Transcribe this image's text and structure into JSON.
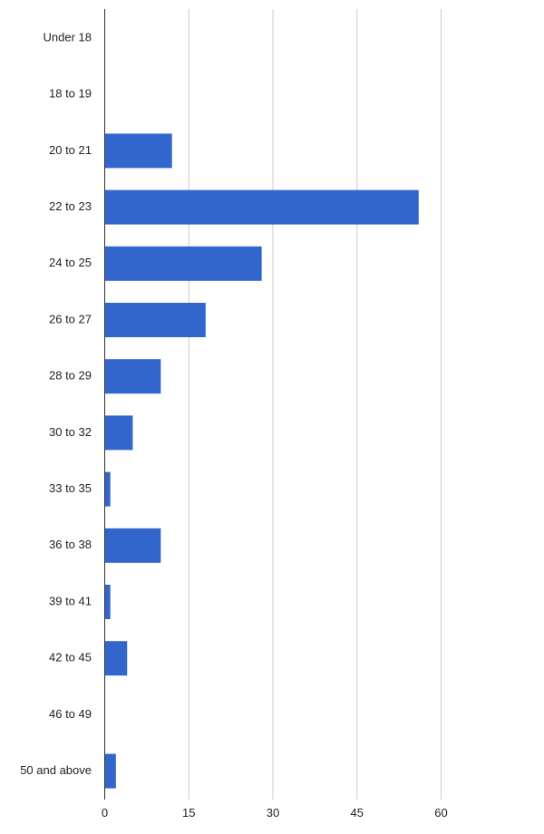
{
  "chart_data": {
    "type": "bar",
    "orientation": "horizontal",
    "categories": [
      "Under 18",
      "18 to 19",
      "20 to 21",
      "22 to 23",
      "24 to 25",
      "26 to 27",
      "28 to 29",
      "30 to 32",
      "33 to 35",
      "36 to 38",
      "39 to 41",
      "42 to 45",
      "46 to 49",
      "50 and above"
    ],
    "values": [
      0,
      0,
      12,
      56,
      28,
      18,
      10,
      5,
      1,
      10,
      1,
      4,
      0,
      2
    ],
    "xlim": [
      0,
      70
    ],
    "xticks": [
      0,
      15,
      30,
      45,
      60
    ],
    "grid": true,
    "bar_color": "#3366cc",
    "grid_color": "#cccccc",
    "axis_color": "#333333"
  }
}
